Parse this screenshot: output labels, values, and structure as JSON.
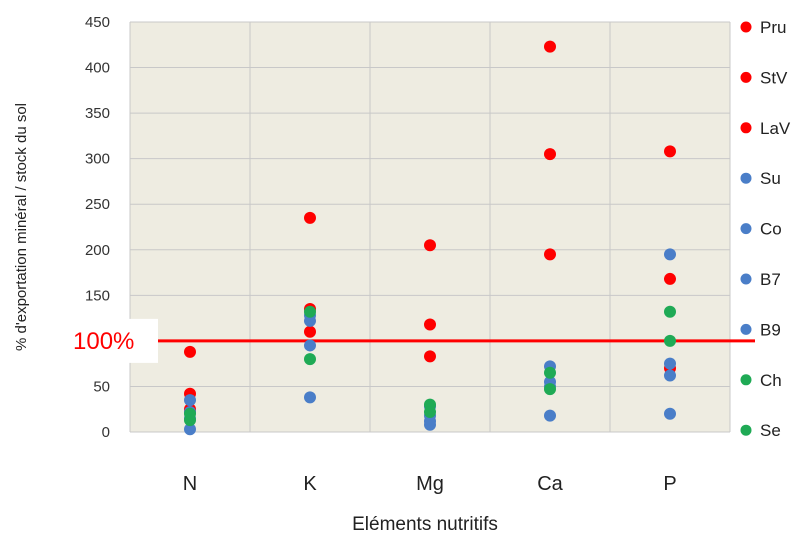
{
  "chart_data": {
    "type": "scatter",
    "title": "",
    "xlabel": "Eléments nutritifs",
    "ylabel": "% d'exportation minéral / stock du sol",
    "categories": [
      "N",
      "K",
      "Mg",
      "Ca",
      "P"
    ],
    "ylim": [
      0,
      450
    ],
    "yticks": [
      0,
      50,
      100,
      150,
      200,
      250,
      300,
      350,
      400,
      450
    ],
    "grid": true,
    "legend_position": "right",
    "reference_line": {
      "value": 100,
      "label": "100%",
      "color": "#ff0000"
    },
    "series": [
      {
        "name": "Pru",
        "color": "#ff0000",
        "values": [
          88,
          235,
          205,
          423,
          308
        ]
      },
      {
        "name": "StV",
        "color": "#ff0000",
        "values": [
          42,
          135,
          118,
          305,
          168
        ]
      },
      {
        "name": "LaV",
        "color": "#ff0000",
        "values": [
          25,
          110,
          83,
          195,
          70
        ]
      },
      {
        "name": "Su",
        "color": "#4a7ec8",
        "values": [
          35,
          128,
          12,
          72,
          195
        ]
      },
      {
        "name": "Co",
        "color": "#4a7ec8",
        "values": [
          22,
          122,
          18,
          55,
          75
        ]
      },
      {
        "name": "B7",
        "color": "#4a7ec8",
        "values": [
          15,
          95,
          8,
          50,
          62
        ]
      },
      {
        "name": "B9",
        "color": "#4a7ec8",
        "values": [
          3,
          38,
          28,
          18,
          20
        ]
      },
      {
        "name": "Ch",
        "color": "#1faa55",
        "values": [
          20,
          132,
          30,
          65,
          132
        ]
      },
      {
        "name": "Se",
        "color": "#1faa55",
        "values": [
          13,
          80,
          22,
          47,
          100
        ]
      }
    ]
  }
}
